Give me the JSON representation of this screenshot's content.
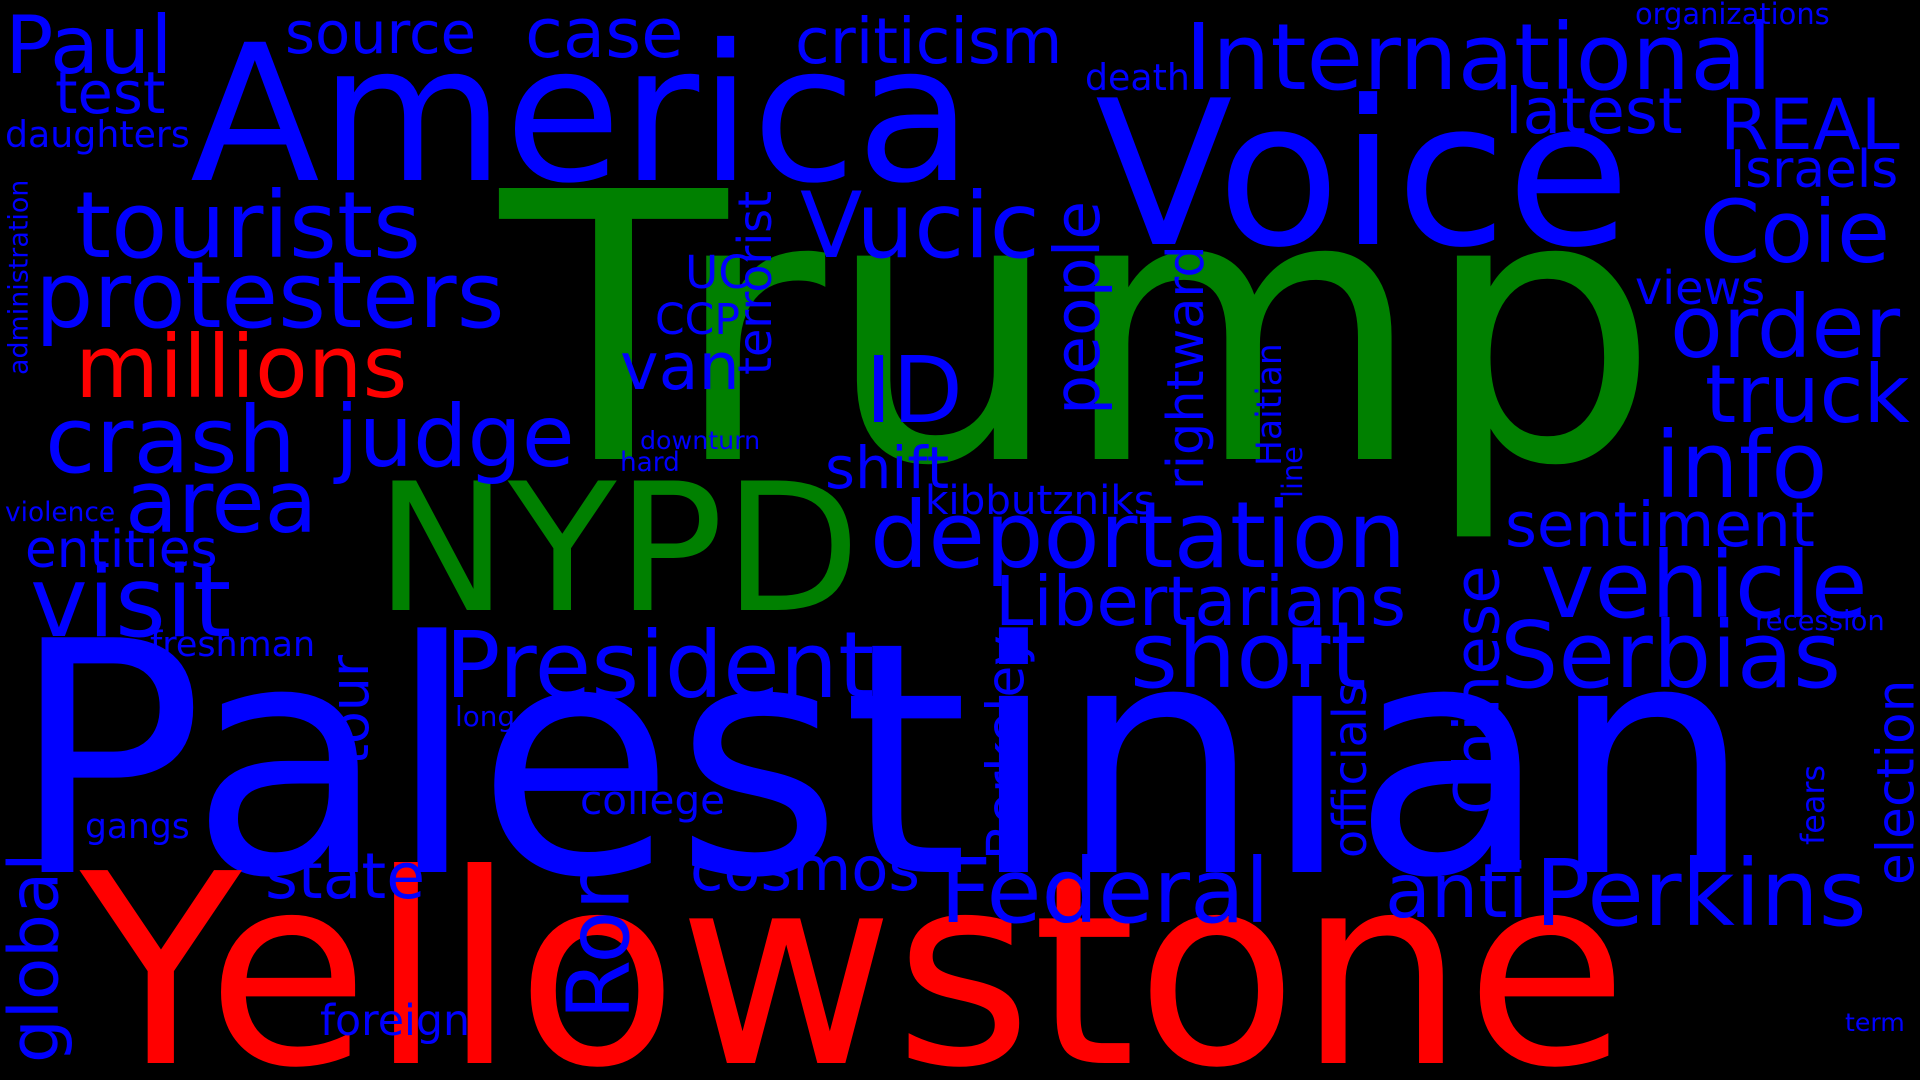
{
  "colors": {
    "background": "#000000",
    "blue": "#0000ff",
    "green": "#008000",
    "red": "#ff0000"
  },
  "words": [
    {
      "id": "trump",
      "text": "Trump",
      "color": "green"
    },
    {
      "id": "palestinian",
      "text": "Palestinian",
      "color": "blue"
    },
    {
      "id": "yellowstone",
      "text": "Yellowstone",
      "color": "red"
    },
    {
      "id": "america",
      "text": "America",
      "color": "blue"
    },
    {
      "id": "voice",
      "text": "Voice",
      "color": "blue"
    },
    {
      "id": "nypd",
      "text": "NYPD",
      "color": "green"
    },
    {
      "id": "international",
      "text": "International",
      "color": "blue"
    },
    {
      "id": "deportation",
      "text": "deportation",
      "color": "blue"
    },
    {
      "id": "protesters",
      "text": "protesters",
      "color": "blue"
    },
    {
      "id": "tourists",
      "text": "tourists",
      "color": "blue"
    },
    {
      "id": "millions",
      "text": "millions",
      "color": "red"
    },
    {
      "id": "crash",
      "text": "crash",
      "color": "blue"
    },
    {
      "id": "judge",
      "text": "judge",
      "color": "blue"
    },
    {
      "id": "visit",
      "text": "visit",
      "color": "blue"
    },
    {
      "id": "area",
      "text": "area",
      "color": "blue"
    },
    {
      "id": "case",
      "text": "case",
      "color": "blue"
    },
    {
      "id": "paul",
      "text": "Paul",
      "color": "blue"
    },
    {
      "id": "source",
      "text": "source",
      "color": "blue"
    },
    {
      "id": "criticism",
      "text": "criticism",
      "color": "blue"
    },
    {
      "id": "test",
      "text": "test",
      "color": "blue"
    },
    {
      "id": "daughters",
      "text": "daughters",
      "color": "blue"
    },
    {
      "id": "vucic",
      "text": "Vucic",
      "color": "blue"
    },
    {
      "id": "president",
      "text": "President",
      "color": "blue"
    },
    {
      "id": "short",
      "text": "short",
      "color": "blue"
    },
    {
      "id": "serbias",
      "text": "Serbias",
      "color": "blue"
    },
    {
      "id": "vehicle",
      "text": "vehicle",
      "color": "blue"
    },
    {
      "id": "info",
      "text": "info",
      "color": "blue"
    },
    {
      "id": "coie",
      "text": "Coie",
      "color": "blue"
    },
    {
      "id": "real",
      "text": "REAL",
      "color": "blue"
    },
    {
      "id": "latest",
      "text": "latest",
      "color": "blue"
    },
    {
      "id": "israels",
      "text": "Israels",
      "color": "blue"
    },
    {
      "id": "order",
      "text": "order",
      "color": "blue"
    },
    {
      "id": "truck",
      "text": "truck",
      "color": "blue"
    },
    {
      "id": "views",
      "text": "views",
      "color": "blue"
    },
    {
      "id": "sentiment",
      "text": "sentiment",
      "color": "blue"
    },
    {
      "id": "libertarians",
      "text": "Libertarians",
      "color": "blue"
    },
    {
      "id": "federal",
      "text": "Federal",
      "color": "blue"
    },
    {
      "id": "perkins",
      "text": "Perkins",
      "color": "blue"
    },
    {
      "id": "anti",
      "text": "anti",
      "color": "blue"
    },
    {
      "id": "cosmos",
      "text": "cosmos",
      "color": "blue"
    },
    {
      "id": "state",
      "text": "state",
      "color": "blue"
    },
    {
      "id": "entities",
      "text": "entities",
      "color": "blue"
    },
    {
      "id": "freshman",
      "text": "freshman",
      "color": "blue"
    },
    {
      "id": "gangs",
      "text": "gangs",
      "color": "blue"
    },
    {
      "id": "foreign",
      "text": "foreign",
      "color": "blue"
    },
    {
      "id": "college",
      "text": "college",
      "color": "blue"
    },
    {
      "id": "long",
      "text": "long",
      "color": "blue"
    },
    {
      "id": "violence",
      "text": "violence",
      "color": "blue"
    },
    {
      "id": "van",
      "text": "van",
      "color": "blue"
    },
    {
      "id": "ccp",
      "text": "CCP",
      "color": "blue"
    },
    {
      "id": "uc",
      "text": "UC",
      "color": "blue"
    },
    {
      "id": "id",
      "text": "ID",
      "color": "blue"
    },
    {
      "id": "shift",
      "text": "shift",
      "color": "blue"
    },
    {
      "id": "kibbutzniks",
      "text": "kibbutzniks",
      "color": "blue"
    },
    {
      "id": "downturn",
      "text": "downturn",
      "color": "blue"
    },
    {
      "id": "hard",
      "text": "hard",
      "color": "blue"
    },
    {
      "id": "death",
      "text": "death",
      "color": "blue"
    },
    {
      "id": "organizations",
      "text": "organizations",
      "color": "blue"
    },
    {
      "id": "recession",
      "text": "recession",
      "color": "blue"
    },
    {
      "id": "term",
      "text": "term",
      "color": "blue"
    },
    {
      "id": "tour",
      "text": "tour",
      "color": "blue"
    },
    {
      "id": "ron",
      "text": "Ron",
      "color": "blue"
    },
    {
      "id": "global",
      "text": "global",
      "color": "blue"
    },
    {
      "id": "people",
      "text": "people",
      "color": "blue"
    },
    {
      "id": "rightward",
      "text": "rightward",
      "color": "blue"
    },
    {
      "id": "terrorist",
      "text": "terrorist",
      "color": "blue"
    },
    {
      "id": "chinese",
      "text": "Chinese",
      "color": "blue"
    },
    {
      "id": "berkeley",
      "text": "Berkeley",
      "color": "blue"
    },
    {
      "id": "officials",
      "text": "officials",
      "color": "blue"
    },
    {
      "id": "election",
      "text": "election",
      "color": "blue"
    },
    {
      "id": "haitian",
      "text": "Haitian",
      "color": "blue"
    },
    {
      "id": "line",
      "text": "line",
      "color": "blue"
    },
    {
      "id": "fears",
      "text": "fears",
      "color": "blue"
    },
    {
      "id": "administration",
      "text": "administration",
      "color": "blue"
    }
  ]
}
